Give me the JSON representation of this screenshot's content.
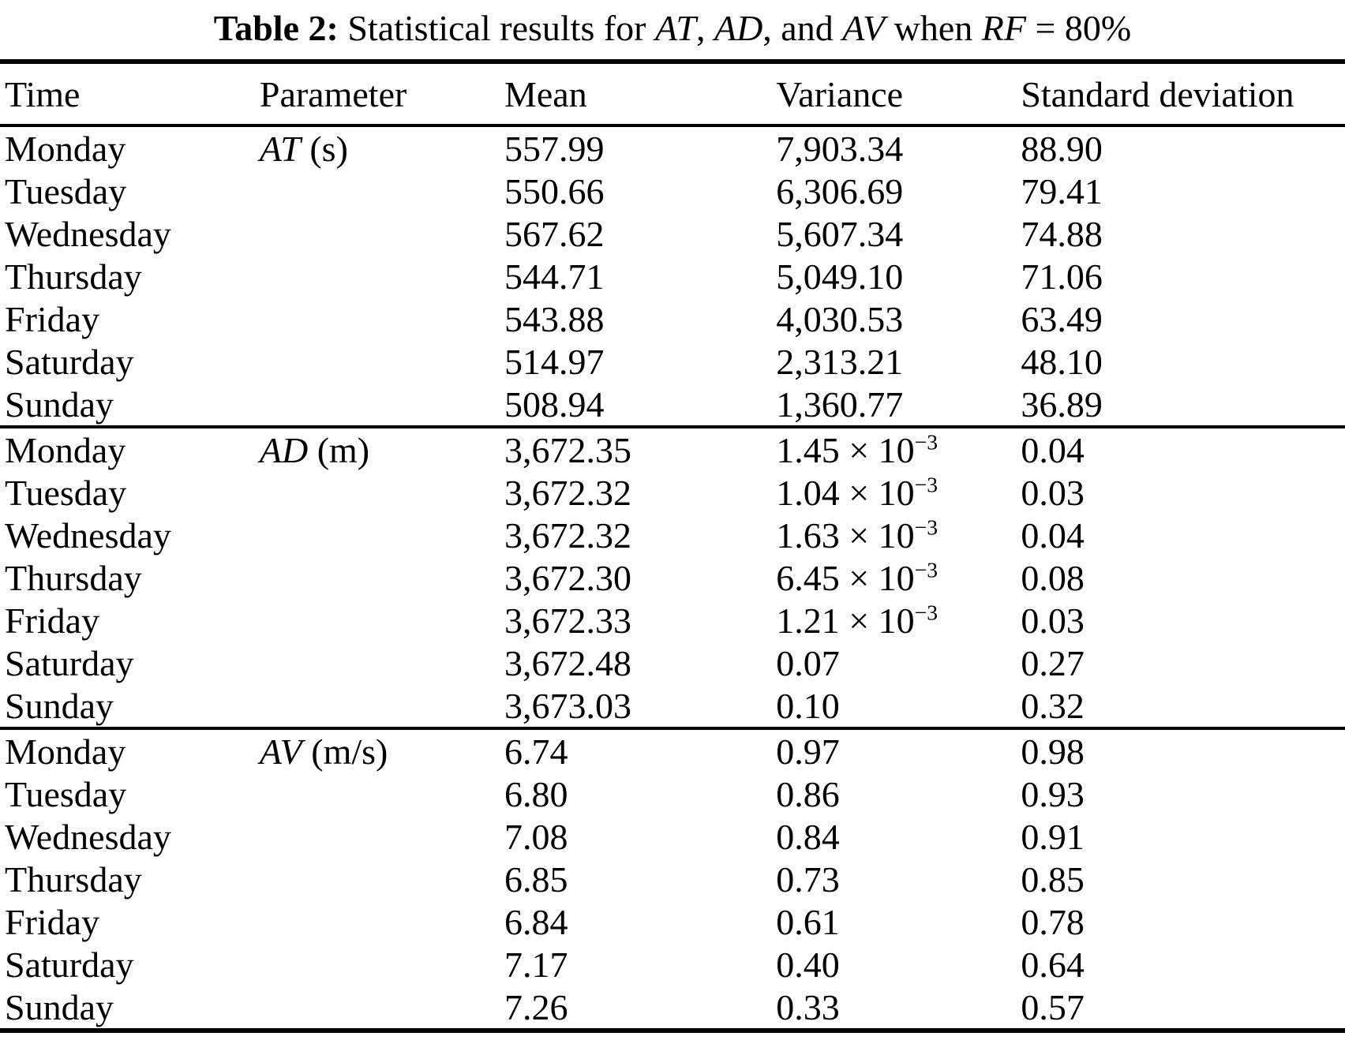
{
  "caption": {
    "segments": [
      {
        "text": "Table 2:"
      },
      {
        "text": "  Statistical results for "
      },
      {
        "text": "AT"
      },
      {
        "text": ", "
      },
      {
        "text": "AD"
      },
      {
        "text": ", and "
      },
      {
        "text": "AV"
      },
      {
        "text": " when "
      },
      {
        "text": "RF"
      },
      {
        "text": " = 80%"
      }
    ]
  },
  "table": {
    "columns": [
      "Time",
      "Parameter",
      "Mean",
      "Variance",
      "Standard deviation"
    ],
    "sections": [
      {
        "parameter": {
          "symbol": "AT",
          "unit": " (s)"
        },
        "rows": [
          {
            "time": "Monday",
            "mean": "557.99",
            "variance": "7,903.34",
            "std": "88.90"
          },
          {
            "time": "Tuesday",
            "mean": "550.66",
            "variance": "6,306.69",
            "std": "79.41"
          },
          {
            "time": "Wednesday",
            "mean": "567.62",
            "variance": "5,607.34",
            "std": "74.88"
          },
          {
            "time": "Thursday",
            "mean": "544.71",
            "variance": "5,049.10",
            "std": "71.06"
          },
          {
            "time": "Friday",
            "mean": "543.88",
            "variance": "4,030.53",
            "std": "63.49"
          },
          {
            "time": "Saturday",
            "mean": "514.97",
            "variance": "2,313.21",
            "std": "48.10"
          },
          {
            "time": "Sunday",
            "mean": "508.94",
            "variance": "1,360.77",
            "std": "36.89"
          }
        ]
      },
      {
        "parameter": {
          "symbol": "AD",
          "unit": " (m)"
        },
        "rows": [
          {
            "time": "Monday",
            "mean": "3,672.35",
            "variance": "1.45 × 10",
            "variance_exp": "−3",
            "std": "0.04"
          },
          {
            "time": "Tuesday",
            "mean": "3,672.32",
            "variance": "1.04 × 10",
            "variance_exp": "−3",
            "std": "0.03"
          },
          {
            "time": "Wednesday",
            "mean": "3,672.32",
            "variance": "1.63 × 10",
            "variance_exp": "−3",
            "std": "0.04"
          },
          {
            "time": "Thursday",
            "mean": "3,672.30",
            "variance": "6.45 × 10",
            "variance_exp": "−3",
            "std": "0.08"
          },
          {
            "time": "Friday",
            "mean": "3,672.33",
            "variance": "1.21 × 10",
            "variance_exp": "−3",
            "std": "0.03"
          },
          {
            "time": "Saturday",
            "mean": "3,672.48",
            "variance": "0.07",
            "std": "0.27"
          },
          {
            "time": "Sunday",
            "mean": "3,673.03",
            "variance": "0.10",
            "std": "0.32"
          }
        ]
      },
      {
        "parameter": {
          "symbol": "AV",
          "unit": " (m/s)"
        },
        "rows": [
          {
            "time": "Monday",
            "mean": "6.74",
            "variance": "0.97",
            "std": "0.98"
          },
          {
            "time": "Tuesday",
            "mean": "6.80",
            "variance": "0.86",
            "std": "0.93"
          },
          {
            "time": "Wednesday",
            "mean": "7.08",
            "variance": "0.84",
            "std": "0.91"
          },
          {
            "time": "Thursday",
            "mean": "6.85",
            "variance": "0.73",
            "std": "0.85"
          },
          {
            "time": "Friday",
            "mean": "6.84",
            "variance": "0.61",
            "std": "0.78"
          },
          {
            "time": "Saturday",
            "mean": "7.17",
            "variance": "0.40",
            "std": "0.64"
          },
          {
            "time": "Sunday",
            "mean": "7.26",
            "variance": "0.33",
            "std": "0.57"
          }
        ]
      }
    ]
  }
}
